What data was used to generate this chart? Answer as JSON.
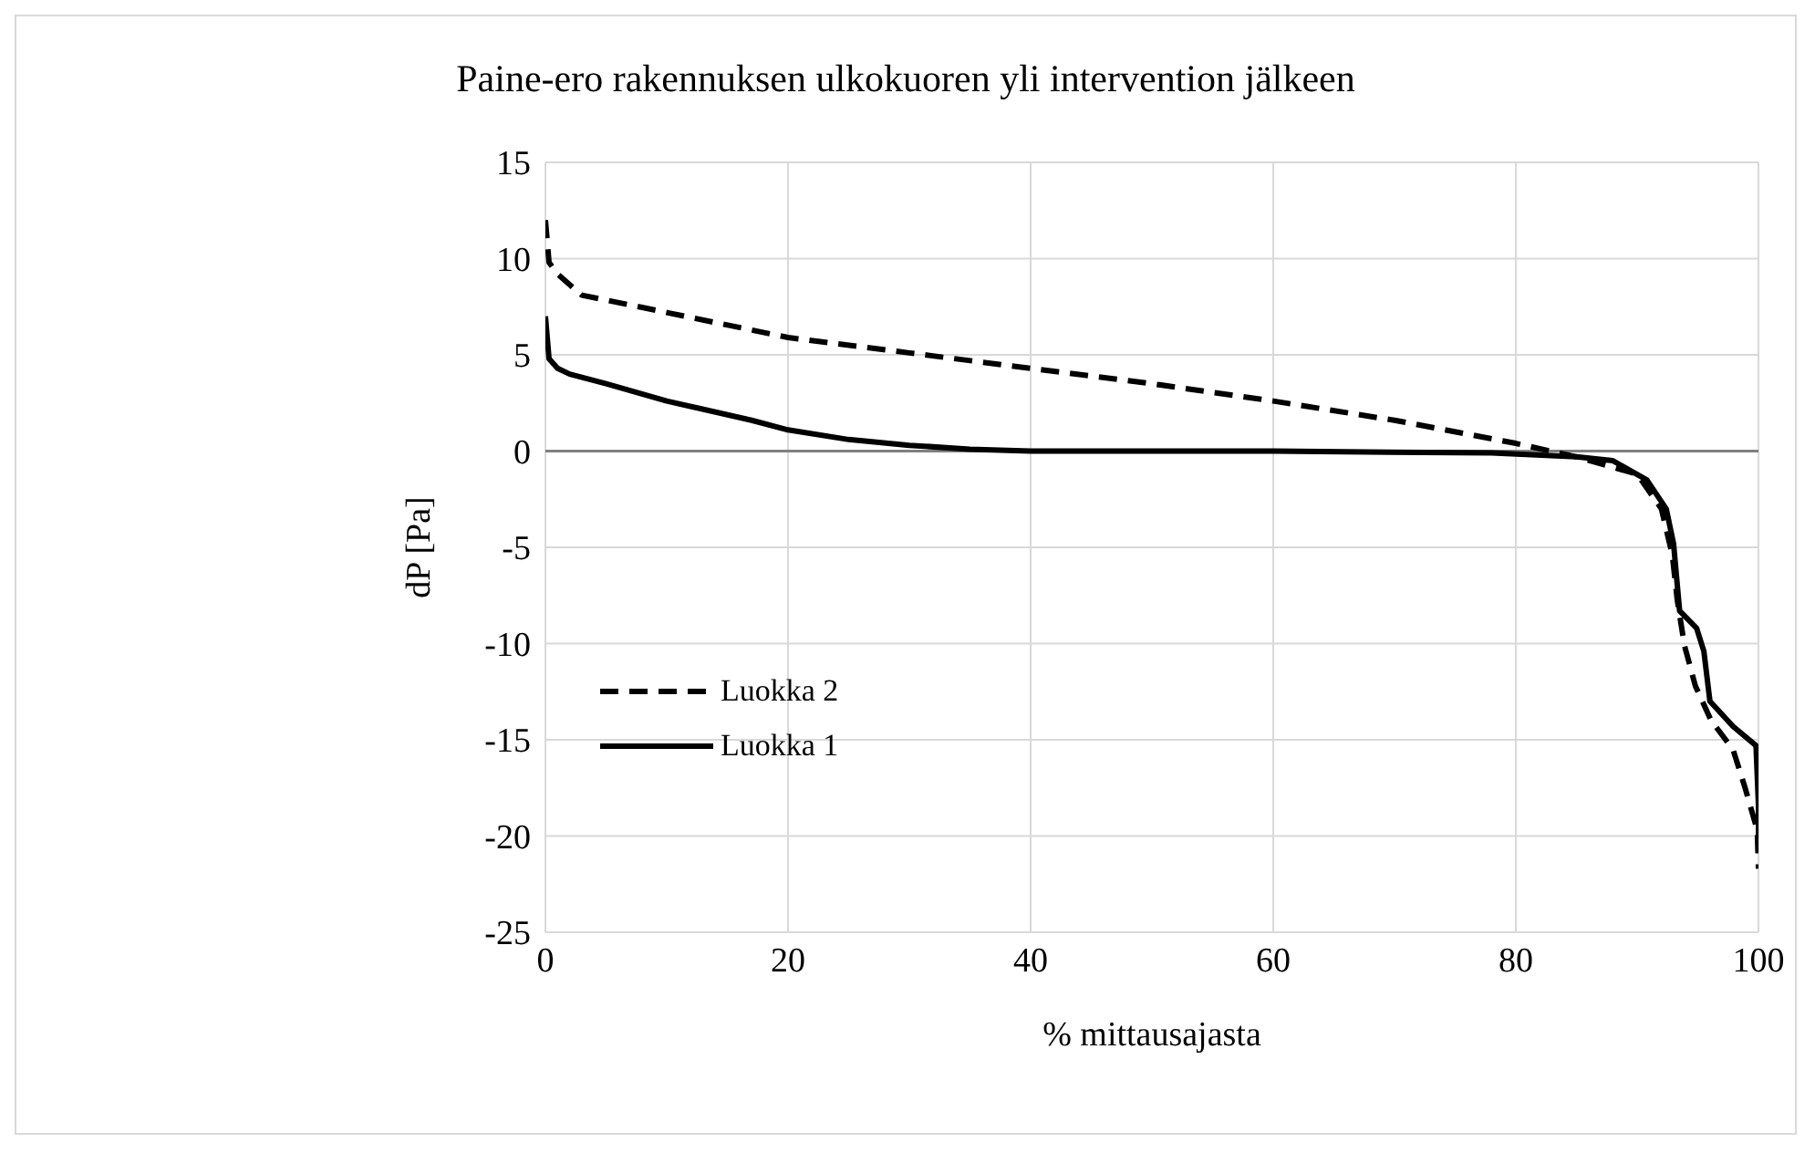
{
  "chart_data": {
    "type": "line",
    "title": "Paine-ero rakennuksen ulkokuoren yli intervention jälkeen",
    "xlabel": "% mittausajasta",
    "ylabel": "dP [Pa]",
    "xlim": [
      0,
      100
    ],
    "xticks": [
      0,
      20,
      40,
      60,
      80,
      100
    ],
    "ylim": [
      -25,
      15
    ],
    "yticks": [
      -25,
      -20,
      -15,
      -10,
      -5,
      0,
      5,
      10,
      15
    ],
    "grid": true,
    "legend": "bottom left",
    "marker": "none",
    "ref_lines": [
      {
        "axis": "y",
        "value": 0,
        "color": "#808080"
      }
    ],
    "series": [
      {
        "name": "Luokka 2",
        "color": "#000000",
        "line_style": "dashed",
        "x": [
          0,
          0.3,
          1,
          3,
          10,
          20,
          30,
          40,
          50,
          60,
          70,
          80,
          85,
          90,
          92,
          92.9,
          93.3,
          93.9,
          94.8,
          96.1,
          97.9,
          98.9,
          99.9,
          100
        ],
        "values": [
          12,
          9.8,
          9.2,
          8.1,
          7.2,
          5.9,
          5.1,
          4.3,
          3.5,
          2.6,
          1.6,
          0.4,
          -0.3,
          -1.2,
          -3,
          -5.4,
          -7.7,
          -10.1,
          -12.2,
          -14,
          -15.5,
          -17.5,
          -19.7,
          -21.7
        ]
      },
      {
        "name": "Luokka 1",
        "color": "#000000",
        "line_style": "solid",
        "x": [
          0,
          0.3,
          1,
          2,
          5,
          10,
          17,
          20,
          25,
          30,
          35,
          40,
          60,
          78,
          85,
          88,
          90.8,
          92.4,
          93,
          93.5,
          94.9,
          95.5,
          96,
          97.9,
          99.8,
          100,
          100
        ],
        "values": [
          7,
          4.8,
          4.3,
          4,
          3.5,
          2.6,
          1.6,
          1.1,
          0.6,
          0.3,
          0.1,
          0,
          0,
          -0.1,
          -0.3,
          -0.5,
          -1.5,
          -3,
          -4.8,
          -8.3,
          -9.2,
          -10.4,
          -13,
          -14.3,
          -15.3,
          -18.4,
          -20
        ]
      }
    ]
  }
}
